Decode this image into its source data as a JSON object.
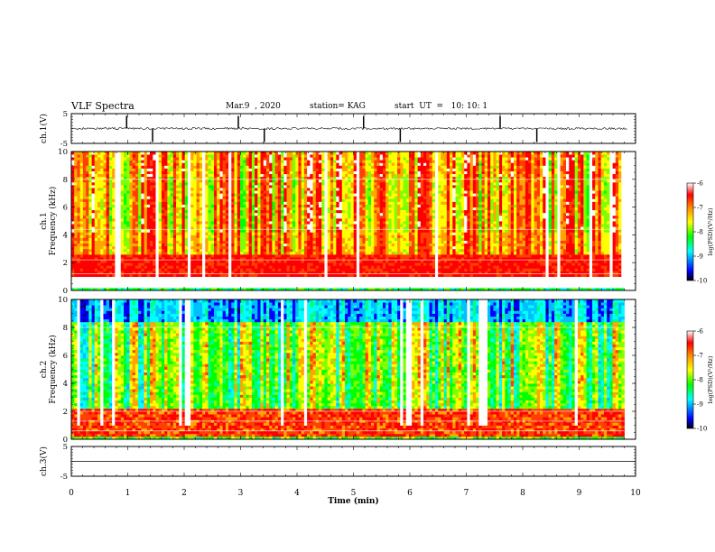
{
  "header": {
    "title": "VLF Spectra",
    "date": "Mar.9  , 2020",
    "station": "station= KAG",
    "start": "start  UT  =   10: 10: 1"
  },
  "chart_data": [
    {
      "type": "line",
      "name": "ch.1 waveform",
      "ylabel": "ch.1(V)",
      "ylim": [
        -5,
        5
      ],
      "yticks": [
        "5",
        "-5"
      ],
      "xlim": [
        0,
        10
      ],
      "baseline": 0,
      "spikes_x_min": [
        0.98,
        1.44,
        2.96,
        3.42,
        5.18,
        5.83,
        7.6,
        8.25
      ]
    },
    {
      "type": "heatmap",
      "name": "ch.1 spectrogram",
      "ylabel_top": "ch.1",
      "ylabel": "Frequency (kHz)",
      "ylim": [
        0,
        10
      ],
      "yticks": [
        "0",
        "2",
        "4",
        "6",
        "8",
        "10"
      ],
      "xlim": [
        0,
        9.8
      ],
      "colorbar": {
        "label": "log(PSD)(V²/Hz)",
        "range": [
          -10,
          -6
        ],
        "ticks": [
          "-6",
          "-7",
          "-8",
          "-9",
          "-10"
        ]
      }
    },
    {
      "type": "heatmap",
      "name": "ch.2 spectrogram",
      "ylabel_top": "ch.2",
      "ylabel": "Frequency (kHz)",
      "ylim": [
        0,
        10
      ],
      "yticks": [
        "0",
        "2",
        "4",
        "6",
        "8",
        "10"
      ],
      "xlim": [
        0,
        9.8
      ],
      "colorbar": {
        "label": "log(PSD)(V²/Hz)",
        "range": [
          -10,
          -6
        ],
        "ticks": [
          "-6",
          "-7",
          "-8",
          "-9",
          "-10"
        ]
      }
    },
    {
      "type": "line",
      "name": "ch.3 waveform",
      "ylabel": "ch.3(V)",
      "ylim": [
        -5,
        5
      ],
      "yticks": [
        "5",
        "-5"
      ],
      "xlim": [
        0,
        10
      ],
      "baseline": 0
    }
  ],
  "x_axis": {
    "label": "Time  (min)",
    "range": [
      0,
      10
    ],
    "ticks": [
      "0",
      "1",
      "2",
      "3",
      "4",
      "5",
      "6",
      "7",
      "8",
      "9",
      "10"
    ]
  }
}
